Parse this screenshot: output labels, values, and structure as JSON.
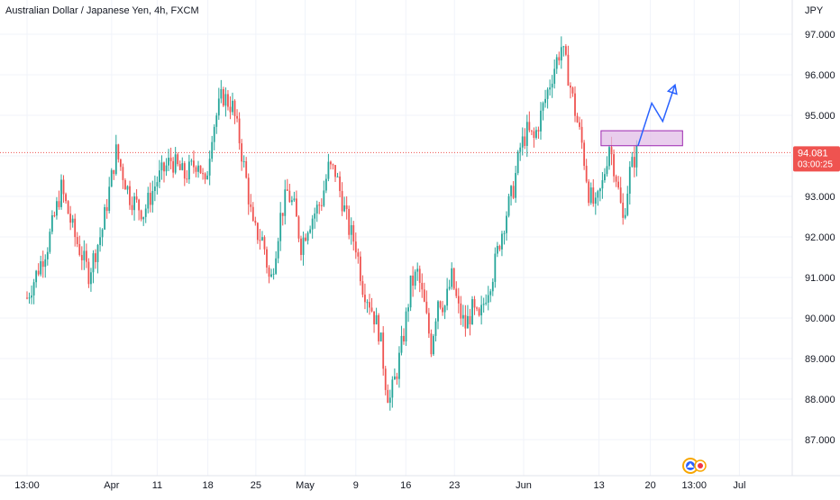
{
  "header": {
    "title": "Australian Dollar / Japanese Yen, 4h, FXCM"
  },
  "price_axis": {
    "currency": "JPY"
  },
  "last_price": {
    "price": "94.081",
    "countdown": "03:00:25",
    "color": "#ef5350"
  },
  "colors": {
    "up": "#26a69a",
    "down": "#ef5350",
    "grid": "#f0f3fa",
    "zone_fill": "#e1bee7",
    "zone_border": "#9c27b0",
    "projection": "#2962ff"
  },
  "icons": [
    "tradingview-logo-icon",
    "red-dot-icon"
  ],
  "chart_data": {
    "type": "candlestick",
    "title": "Australian Dollar / Japanese Yen, 4h, FXCM",
    "xlabel": "",
    "ylabel": "",
    "ylim": [
      86.5,
      97.5
    ],
    "y_ticks": [
      "97.000",
      "96.000",
      "95.000",
      "94.000",
      "93.000",
      "92.000",
      "91.000",
      "90.000",
      "89.000",
      "88.000",
      "87.000"
    ],
    "x_ticks": [
      "13:00",
      "Apr",
      "11",
      "18",
      "25",
      "May",
      "9",
      "16",
      "23",
      "Jun",
      "13",
      "20",
      "13:00",
      "Jul"
    ],
    "x_tick_pos": [
      0.0,
      12.35,
      19.0,
      26.4,
      33.4,
      40.6,
      48.0,
      55.3,
      62.4,
      72.5,
      83.5,
      91.0,
      97.4,
      104.0
    ],
    "x_range": [
      -3.5,
      110.5
    ],
    "anchors": [
      [
        0,
        90.5
      ],
      [
        3,
        91.8
      ],
      [
        5,
        93.2
      ],
      [
        7,
        92.0
      ],
      [
        9,
        91.1
      ],
      [
        11,
        92.2
      ],
      [
        13,
        94.1
      ],
      [
        15,
        93.0
      ],
      [
        17,
        92.6
      ],
      [
        19,
        93.4
      ],
      [
        21,
        93.9
      ],
      [
        23,
        93.5
      ],
      [
        25,
        93.9
      ],
      [
        26,
        93.2
      ],
      [
        27,
        94.6
      ],
      [
        28.5,
        95.5
      ],
      [
        30,
        95.2
      ],
      [
        31,
        94.4
      ],
      [
        32,
        93.4
      ],
      [
        33,
        92.2
      ],
      [
        34.5,
        91.9
      ],
      [
        35.5,
        90.8
      ],
      [
        37,
        92.5
      ],
      [
        38,
        93.1
      ],
      [
        39,
        92.7
      ],
      [
        40,
        91.8
      ],
      [
        41,
        92.3
      ],
      [
        42,
        92.6
      ],
      [
        43,
        92.9
      ],
      [
        44,
        93.7
      ],
      [
        45,
        93.6
      ],
      [
        46,
        92.9
      ],
      [
        47,
        92.2
      ],
      [
        48,
        91.8
      ],
      [
        49,
        90.8
      ],
      [
        50,
        90.4
      ],
      [
        51.5,
        89.6
      ],
      [
        52.5,
        88.2
      ],
      [
        53,
        88.0
      ],
      [
        54,
        88.7
      ],
      [
        55,
        89.6
      ],
      [
        56,
        90.8
      ],
      [
        57,
        91.1
      ],
      [
        58,
        90.3
      ],
      [
        59,
        89.3
      ],
      [
        60,
        90.5
      ],
      [
        61,
        90.3
      ],
      [
        62,
        91.0
      ],
      [
        63,
        90.2
      ],
      [
        64,
        89.8
      ],
      [
        65,
        90.2
      ],
      [
        66,
        89.9
      ],
      [
        67,
        90.6
      ],
      [
        68,
        91.1
      ],
      [
        69,
        91.9
      ],
      [
        70,
        92.6
      ],
      [
        71,
        93.2
      ],
      [
        72,
        94.2
      ],
      [
        73,
        94.6
      ],
      [
        74,
        94.4
      ],
      [
        75,
        95.0
      ],
      [
        76,
        95.6
      ],
      [
        77,
        96.2
      ],
      [
        78,
        96.7
      ],
      [
        79,
        96.0
      ],
      [
        80,
        95.1
      ],
      [
        81,
        94.3
      ],
      [
        82,
        93.1
      ],
      [
        83,
        92.7
      ],
      [
        84,
        93.3
      ],
      [
        85,
        94.3
      ],
      [
        86,
        93.5
      ],
      [
        87,
        92.4
      ],
      [
        88,
        93.6
      ],
      [
        89,
        94.1
      ]
    ],
    "resistance_zone": {
      "top": 94.62,
      "bottom": 94.25,
      "x_start": 83.8,
      "x_end": 95.7
    },
    "projection_path": [
      [
        89.2,
        94.25
      ],
      [
        91.2,
        95.3
      ],
      [
        92.8,
        94.85
      ],
      [
        94.6,
        95.75
      ]
    ],
    "last_value": 94.081,
    "grid": true
  }
}
